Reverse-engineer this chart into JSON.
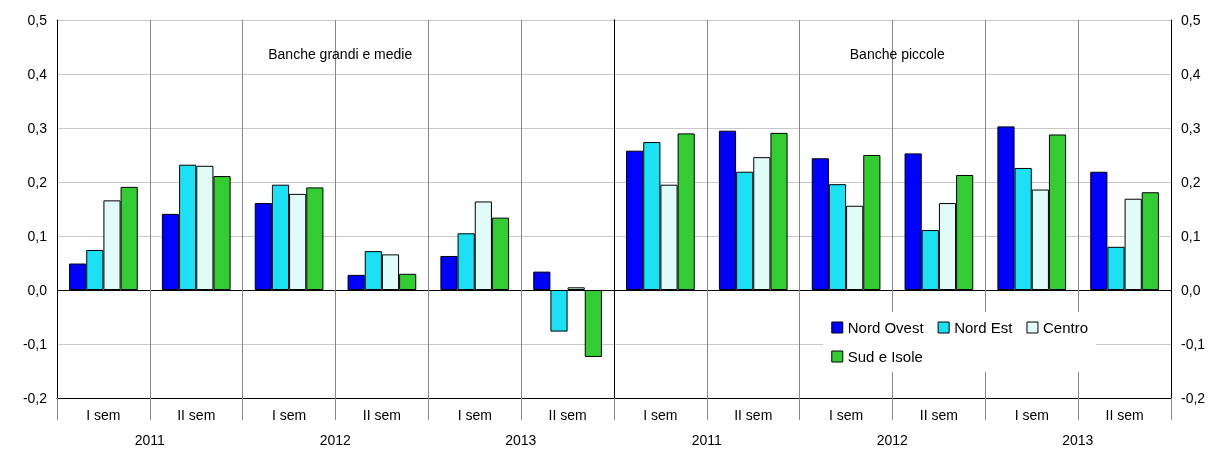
{
  "chart_data": [
    {
      "type": "bar",
      "title": "Banche grandi e medie",
      "categories": [
        "I sem",
        "II sem",
        "I sem",
        "II sem",
        "I sem",
        "II sem"
      ],
      "series": [
        {
          "color": "#0000ff",
          "values": [
            0.049,
            0.141,
            0.161,
            0.028,
            0.063,
            0.034
          ]
        },
        {
          "color": "#1ce1f4",
          "values": [
            0.074,
            0.232,
            0.195,
            0.072,
            0.105,
            -0.077
          ]
        },
        {
          "color": "#e0fbf8",
          "values": [
            0.166,
            0.23,
            0.178,
            0.066,
            0.164,
            0.005
          ]
        },
        {
          "color": "#33cc33",
          "values": [
            0.191,
            0.211,
            0.19,
            0.03,
            0.134,
            -0.124
          ]
        }
      ],
      "ylim": [
        -0.2,
        0.5
      ],
      "yticks": [
        {
          "value": -0.2,
          "label": "-0,2"
        },
        {
          "value": -0.1,
          "label": "-0,1"
        },
        {
          "value": 0,
          "label": "0,0"
        },
        {
          "value": 0.1,
          "label": "0,1"
        },
        {
          "value": 0.2,
          "label": "0,2"
        },
        {
          "value": 0.3,
          "label": "0,3"
        },
        {
          "value": 0.4,
          "label": "0,4"
        },
        {
          "value": 0.5,
          "label": "0,5"
        }
      ],
      "annotations": [
        "2011",
        "2012",
        "2013"
      ],
      "grid": true
    },
    {
      "type": "bar",
      "title": "Banche piccole",
      "categories": [
        "I sem",
        "II sem",
        "I sem",
        "II sem",
        "I sem",
        "II sem"
      ],
      "series": [
        {
          "name": "Nord Ovest",
          "color": "#0000ff",
          "values": [
            0.258,
            0.295,
            0.244,
            0.253,
            0.303,
            0.219
          ]
        },
        {
          "name": "Nord Est",
          "color": "#1ce1f4",
          "values": [
            0.274,
            0.219,
            0.196,
            0.111,
            0.226,
            0.08
          ]
        },
        {
          "name": "Centro",
          "color": "#e0fbf8",
          "values": [
            0.195,
            0.246,
            0.156,
            0.161,
            0.186,
            0.169
          ]
        },
        {
          "name": "Sud e Isole",
          "color": "#33cc33",
          "values": [
            0.29,
            0.291,
            0.25,
            0.213,
            0.288,
            0.181
          ]
        }
      ],
      "ylim": [
        -0.2,
        0.5
      ],
      "yticks": [
        {
          "value": -0.2,
          "label": "-0,2"
        },
        {
          "value": -0.1,
          "label": "-0,1"
        },
        {
          "value": 0,
          "label": "0,0"
        },
        {
          "value": 0.1,
          "label": "0,1"
        },
        {
          "value": 0.2,
          "label": "0,2"
        },
        {
          "value": 0.3,
          "label": "0,3"
        },
        {
          "value": 0.4,
          "label": "0,4"
        },
        {
          "value": 0.5,
          "label": "0,5"
        }
      ],
      "annotations": [
        "2011",
        "2012",
        "2013"
      ],
      "grid": true,
      "legend": "bottom right"
    }
  ]
}
